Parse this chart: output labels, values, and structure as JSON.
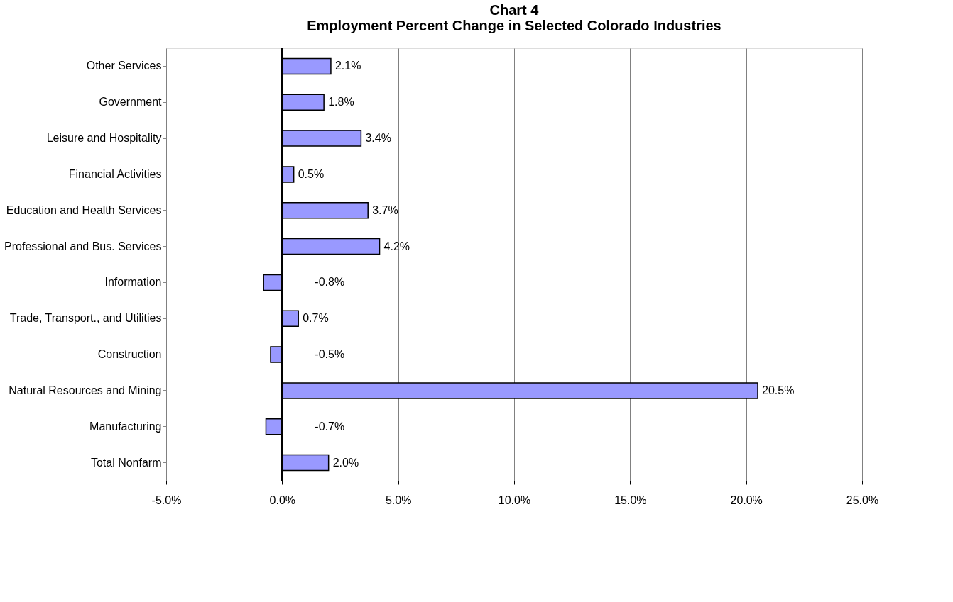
{
  "chart_data": {
    "type": "bar",
    "orientation": "horizontal",
    "title": "Chart 4\nEmployment Percent Change in Selected Colorado Industries",
    "categories": [
      "Other Services",
      "Government",
      "Leisure and Hospitality",
      "Financial Activities",
      "Education and Health Services",
      "Professional and Bus. Services",
      "Information",
      "Trade, Transport., and Utilities",
      "Construction",
      "Natural Resources and Mining",
      "Manufacturing",
      "Total Nonfarm"
    ],
    "values": [
      2.1,
      1.8,
      3.4,
      0.5,
      3.7,
      4.2,
      -0.8,
      0.7,
      -0.5,
      20.5,
      -0.7,
      2.0
    ],
    "value_labels": [
      "2.1%",
      "1.8%",
      "3.4%",
      "0.5%",
      "3.7%",
      "4.2%",
      "-0.8%",
      "0.7%",
      "-0.5%",
      "20.5%",
      "-0.7%",
      "2.0%"
    ],
    "color": "#9999ff",
    "xlim": [
      -5,
      25
    ],
    "xticks": [
      {
        "value": -5,
        "label": "-5.0%"
      },
      {
        "value": 0,
        "label": "0.0%"
      },
      {
        "value": 5,
        "label": "5.0%"
      },
      {
        "value": 10,
        "label": "10.0%"
      },
      {
        "value": 15,
        "label": "15.0%"
      },
      {
        "value": 20,
        "label": "20.0%"
      },
      {
        "value": 25,
        "label": "25.0%"
      }
    ],
    "grid": "x"
  }
}
